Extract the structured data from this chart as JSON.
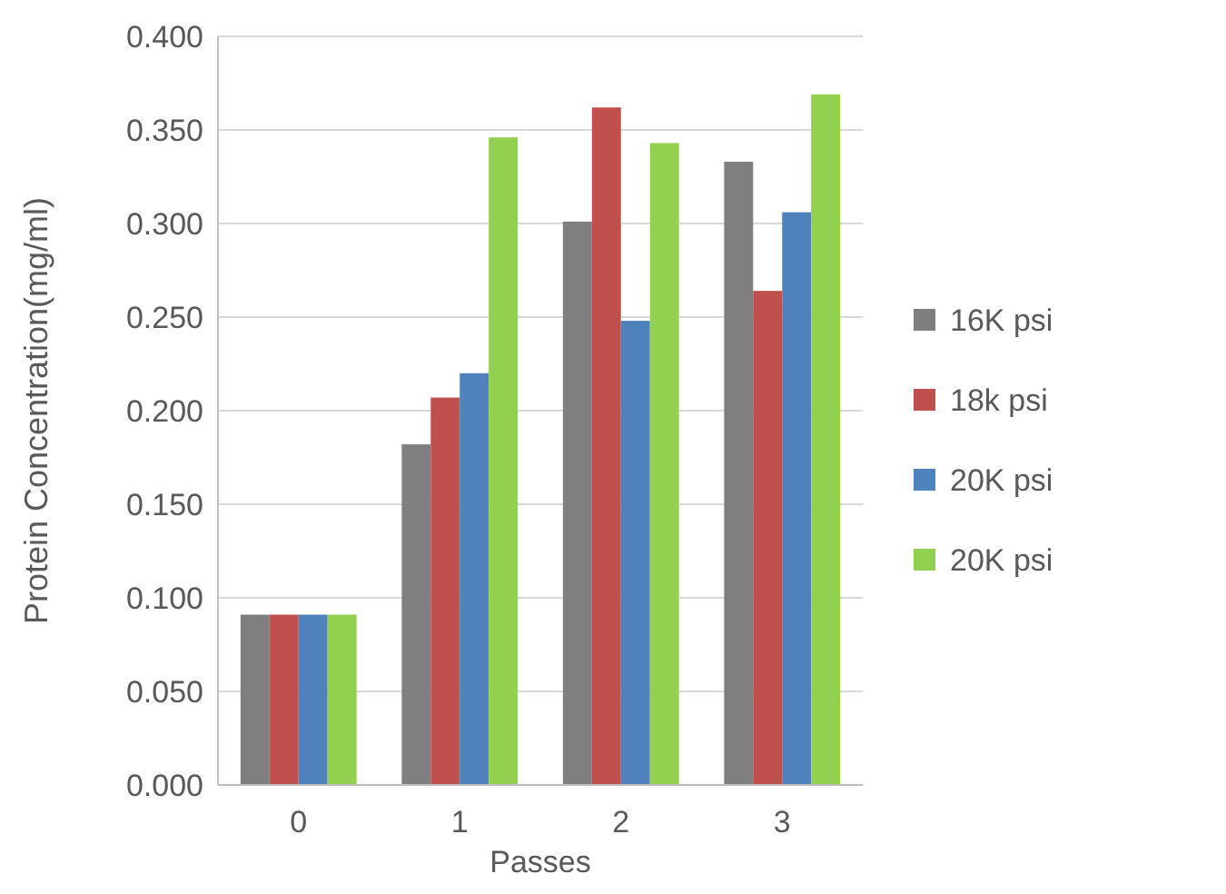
{
  "chart_data": {
    "type": "bar",
    "xlabel": "Passes",
    "ylabel": "Protein Concentration(mg/ml)",
    "categories": [
      "0",
      "1",
      "2",
      "3"
    ],
    "series": [
      {
        "name": "16K psi",
        "color": "#7f7f7f",
        "values": [
          0.091,
          0.182,
          0.301,
          0.333
        ]
      },
      {
        "name": "18k psi",
        "color": "#c0504d",
        "values": [
          0.091,
          0.207,
          0.362,
          0.264
        ]
      },
      {
        "name": "20K psi",
        "color": "#4f81bd",
        "values": [
          0.091,
          0.22,
          0.248,
          0.306
        ]
      },
      {
        "name": "20K psi",
        "color": "#92d050",
        "values": [
          0.091,
          0.346,
          0.343,
          0.369
        ]
      }
    ],
    "ylim": [
      0,
      0.4
    ],
    "yticks": [
      {
        "value": 0,
        "label": "0.000"
      },
      {
        "value": 0.05,
        "label": "0.050"
      },
      {
        "value": 0.1,
        "label": "0.100"
      },
      {
        "value": 0.15,
        "label": "0.150"
      },
      {
        "value": 0.2,
        "label": "0.200"
      },
      {
        "value": 0.25,
        "label": "0.250"
      },
      {
        "value": 0.3,
        "label": "0.300"
      },
      {
        "value": 0.35,
        "label": "0.350"
      },
      {
        "value": 0.4,
        "label": "0.400"
      }
    ],
    "grid": "y",
    "legend": "right"
  }
}
